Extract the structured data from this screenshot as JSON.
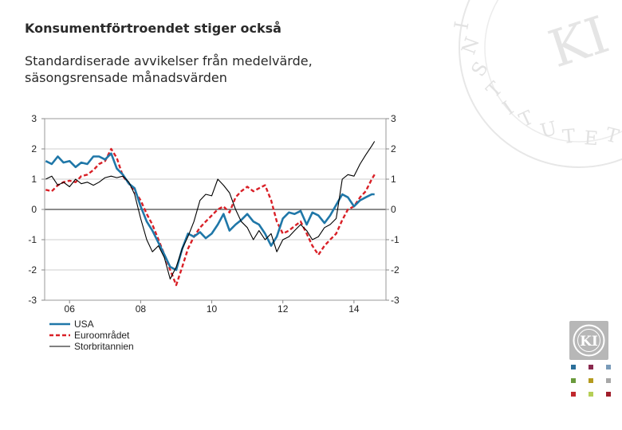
{
  "page": {
    "title": "Konsumentförtroendet stiger också",
    "subtitle_line1": "Standardiserade avvikelser från medelvärde,",
    "subtitle_line2": "säsongsrensade månadsvärden"
  },
  "watermark": {
    "ring_text": "INSTITUTET",
    "monogram": "KI"
  },
  "logo": {
    "monogram": "KI"
  },
  "swatch_colors": [
    "#2b6f9a",
    "#8a2a4f",
    "#7a9bb9",
    "#6a9a3c",
    "#b59b1f",
    "#a8a8a8",
    "#c0272d",
    "#b6cf57",
    "#a01e2b"
  ],
  "chart_data": {
    "type": "line",
    "title": "",
    "xlabel": "",
    "ylabel": "",
    "ylim": [
      -3,
      3
    ],
    "xlim": [
      2005.3,
      2014.9
    ],
    "y_ticks": [
      3,
      2,
      1,
      0,
      -1,
      -2,
      -3
    ],
    "y_tick_labels": [
      "3",
      "2",
      "1",
      "0",
      "-1",
      "-2",
      "-3"
    ],
    "x_ticks": [
      2006,
      2008,
      2010,
      2012,
      2014
    ],
    "x_tick_labels": [
      "06",
      "08",
      "10",
      "12",
      "14"
    ],
    "zero_line": true,
    "grid": "horizontal",
    "legend_position": "bottom-left",
    "series": [
      {
        "name": "USA",
        "color": "#1f77a8",
        "style": "solid-thick",
        "points": [
          [
            2005.33,
            1.6
          ],
          [
            2005.5,
            1.5
          ],
          [
            2005.67,
            1.75
          ],
          [
            2005.83,
            1.55
          ],
          [
            2006.0,
            1.6
          ],
          [
            2006.17,
            1.4
          ],
          [
            2006.33,
            1.55
          ],
          [
            2006.5,
            1.5
          ],
          [
            2006.67,
            1.75
          ],
          [
            2006.83,
            1.75
          ],
          [
            2007.0,
            1.65
          ],
          [
            2007.17,
            1.85
          ],
          [
            2007.33,
            1.35
          ],
          [
            2007.5,
            1.15
          ],
          [
            2007.67,
            0.85
          ],
          [
            2007.83,
            0.7
          ],
          [
            2008.0,
            0.1
          ],
          [
            2008.17,
            -0.4
          ],
          [
            2008.33,
            -0.7
          ],
          [
            2008.5,
            -1.1
          ],
          [
            2008.67,
            -1.5
          ],
          [
            2008.83,
            -1.9
          ],
          [
            2009.0,
            -2.0
          ],
          [
            2009.17,
            -1.3
          ],
          [
            2009.33,
            -0.8
          ],
          [
            2009.5,
            -0.9
          ],
          [
            2009.67,
            -0.75
          ],
          [
            2009.83,
            -0.95
          ],
          [
            2010.0,
            -0.8
          ],
          [
            2010.17,
            -0.5
          ],
          [
            2010.33,
            -0.15
          ],
          [
            2010.5,
            -0.7
          ],
          [
            2010.67,
            -0.5
          ],
          [
            2010.83,
            -0.35
          ],
          [
            2011.0,
            -0.15
          ],
          [
            2011.17,
            -0.4
          ],
          [
            2011.33,
            -0.5
          ],
          [
            2011.5,
            -0.8
          ],
          [
            2011.67,
            -1.2
          ],
          [
            2011.83,
            -0.9
          ],
          [
            2012.0,
            -0.3
          ],
          [
            2012.17,
            -0.1
          ],
          [
            2012.33,
            -0.15
          ],
          [
            2012.5,
            -0.05
          ],
          [
            2012.67,
            -0.5
          ],
          [
            2012.83,
            -0.1
          ],
          [
            2013.0,
            -0.2
          ],
          [
            2013.17,
            -0.45
          ],
          [
            2013.33,
            -0.2
          ],
          [
            2013.5,
            0.15
          ],
          [
            2013.67,
            0.5
          ],
          [
            2013.83,
            0.4
          ],
          [
            2014.0,
            0.1
          ],
          [
            2014.17,
            0.3
          ],
          [
            2014.33,
            0.4
          ],
          [
            2014.5,
            0.5
          ],
          [
            2014.58,
            0.5
          ]
        ]
      },
      {
        "name": "Euroområdet",
        "color": "#d92027",
        "style": "dashed",
        "points": [
          [
            2005.33,
            0.65
          ],
          [
            2005.5,
            0.6
          ],
          [
            2005.67,
            0.8
          ],
          [
            2005.83,
            0.9
          ],
          [
            2006.0,
            0.95
          ],
          [
            2006.17,
            0.9
          ],
          [
            2006.33,
            1.1
          ],
          [
            2006.5,
            1.15
          ],
          [
            2006.67,
            1.3
          ],
          [
            2006.83,
            1.5
          ],
          [
            2007.0,
            1.6
          ],
          [
            2007.17,
            2.0
          ],
          [
            2007.33,
            1.7
          ],
          [
            2007.5,
            1.1
          ],
          [
            2007.67,
            0.85
          ],
          [
            2007.83,
            0.6
          ],
          [
            2008.0,
            0.3
          ],
          [
            2008.17,
            -0.15
          ],
          [
            2008.33,
            -0.5
          ],
          [
            2008.5,
            -1.0
          ],
          [
            2008.67,
            -1.5
          ],
          [
            2008.83,
            -2.0
          ],
          [
            2009.0,
            -2.5
          ],
          [
            2009.17,
            -1.9
          ],
          [
            2009.33,
            -1.3
          ],
          [
            2009.5,
            -0.9
          ],
          [
            2009.67,
            -0.6
          ],
          [
            2009.83,
            -0.4
          ],
          [
            2010.0,
            -0.2
          ],
          [
            2010.17,
            0.0
          ],
          [
            2010.33,
            0.1
          ],
          [
            2010.5,
            -0.1
          ],
          [
            2010.67,
            0.4
          ],
          [
            2010.83,
            0.6
          ],
          [
            2011.0,
            0.75
          ],
          [
            2011.17,
            0.6
          ],
          [
            2011.33,
            0.7
          ],
          [
            2011.5,
            0.8
          ],
          [
            2011.67,
            0.3
          ],
          [
            2011.83,
            -0.4
          ],
          [
            2012.0,
            -0.8
          ],
          [
            2012.17,
            -0.7
          ],
          [
            2012.33,
            -0.55
          ],
          [
            2012.5,
            -0.4
          ],
          [
            2012.67,
            -0.8
          ],
          [
            2012.83,
            -1.2
          ],
          [
            2013.0,
            -1.5
          ],
          [
            2013.17,
            -1.2
          ],
          [
            2013.33,
            -1.0
          ],
          [
            2013.5,
            -0.8
          ],
          [
            2013.67,
            -0.35
          ],
          [
            2013.83,
            0.0
          ],
          [
            2014.0,
            0.1
          ],
          [
            2014.17,
            0.4
          ],
          [
            2014.33,
            0.6
          ],
          [
            2014.5,
            1.0
          ],
          [
            2014.58,
            1.15
          ]
        ]
      },
      {
        "name": "Storbritannien",
        "color": "#000000",
        "style": "solid-thin",
        "points": [
          [
            2005.33,
            1.0
          ],
          [
            2005.5,
            1.1
          ],
          [
            2005.67,
            0.8
          ],
          [
            2005.83,
            0.9
          ],
          [
            2006.0,
            0.75
          ],
          [
            2006.17,
            1.0
          ],
          [
            2006.33,
            0.85
          ],
          [
            2006.5,
            0.9
          ],
          [
            2006.67,
            0.8
          ],
          [
            2006.83,
            0.9
          ],
          [
            2007.0,
            1.05
          ],
          [
            2007.17,
            1.1
          ],
          [
            2007.33,
            1.05
          ],
          [
            2007.5,
            1.1
          ],
          [
            2007.67,
            0.9
          ],
          [
            2007.83,
            0.5
          ],
          [
            2008.0,
            -0.3
          ],
          [
            2008.17,
            -1.0
          ],
          [
            2008.33,
            -1.4
          ],
          [
            2008.5,
            -1.2
          ],
          [
            2008.67,
            -1.6
          ],
          [
            2008.83,
            -2.3
          ],
          [
            2009.0,
            -1.9
          ],
          [
            2009.17,
            -1.3
          ],
          [
            2009.33,
            -0.9
          ],
          [
            2009.5,
            -0.4
          ],
          [
            2009.67,
            0.3
          ],
          [
            2009.83,
            0.5
          ],
          [
            2010.0,
            0.45
          ],
          [
            2010.17,
            1.0
          ],
          [
            2010.33,
            0.8
          ],
          [
            2010.5,
            0.55
          ],
          [
            2010.67,
            0.0
          ],
          [
            2010.83,
            -0.4
          ],
          [
            2011.0,
            -0.6
          ],
          [
            2011.17,
            -1.0
          ],
          [
            2011.33,
            -0.7
          ],
          [
            2011.5,
            -1.0
          ],
          [
            2011.67,
            -0.8
          ],
          [
            2011.83,
            -1.4
          ],
          [
            2012.0,
            -1.0
          ],
          [
            2012.17,
            -0.9
          ],
          [
            2012.33,
            -0.7
          ],
          [
            2012.5,
            -0.5
          ],
          [
            2012.67,
            -0.7
          ],
          [
            2012.83,
            -1.0
          ],
          [
            2013.0,
            -0.9
          ],
          [
            2013.17,
            -0.6
          ],
          [
            2013.33,
            -0.5
          ],
          [
            2013.5,
            -0.3
          ],
          [
            2013.67,
            1.0
          ],
          [
            2013.83,
            1.15
          ],
          [
            2014.0,
            1.1
          ],
          [
            2014.17,
            1.5
          ],
          [
            2014.33,
            1.8
          ],
          [
            2014.5,
            2.1
          ],
          [
            2014.58,
            2.25
          ]
        ]
      }
    ]
  }
}
